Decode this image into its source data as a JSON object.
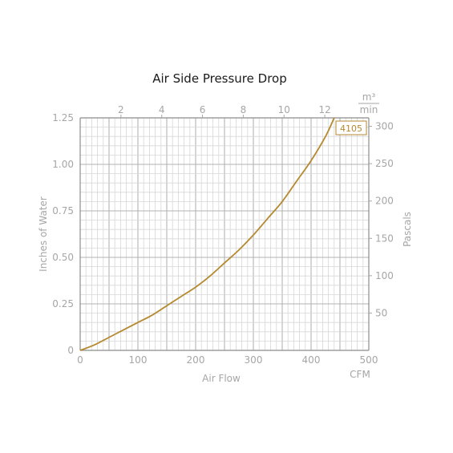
{
  "chart_data": {
    "type": "line",
    "title": "Air Side Pressure Drop",
    "xlabel": "Air Flow",
    "x_unit": "CFM",
    "ylabel": "Inches of Water",
    "y2label": "Pascals",
    "x2_unit_top": "m³",
    "x2_unit_bottom": "min",
    "xlim": [
      0,
      500
    ],
    "ylim": [
      0,
      1.25
    ],
    "x_ticks": [
      0,
      100,
      200,
      300,
      400,
      500
    ],
    "x_tick_labels": [
      "0",
      "100",
      "200",
      "300",
      "400",
      "500"
    ],
    "y_ticks": [
      0,
      0.25,
      0.5,
      0.75,
      1.0,
      1.25
    ],
    "y_tick_labels": [
      "0",
      "0.25",
      "0.50",
      "0.75",
      "1.00",
      "1.25"
    ],
    "x2_ticks": [
      2,
      4,
      6,
      8,
      10,
      12
    ],
    "x2_tick_labels": [
      "2",
      "4",
      "6",
      "8",
      "10",
      "12"
    ],
    "y2_ticks": [
      50,
      100,
      150,
      200,
      250,
      300
    ],
    "y2_tick_labels": [
      "50",
      "100",
      "150",
      "200",
      "250",
      "300"
    ],
    "grid": true,
    "series": [
      {
        "name": "4105",
        "color": "#b5892f",
        "x": [
          0,
          25,
          50,
          75,
          100,
          125,
          150,
          175,
          200,
          225,
          250,
          275,
          300,
          325,
          350,
          375,
          400,
          425,
          440
        ],
        "y": [
          0.0,
          0.03,
          0.07,
          0.11,
          0.15,
          0.19,
          0.24,
          0.29,
          0.34,
          0.4,
          0.47,
          0.54,
          0.62,
          0.71,
          0.8,
          0.91,
          1.02,
          1.15,
          1.25
        ]
      }
    ]
  }
}
